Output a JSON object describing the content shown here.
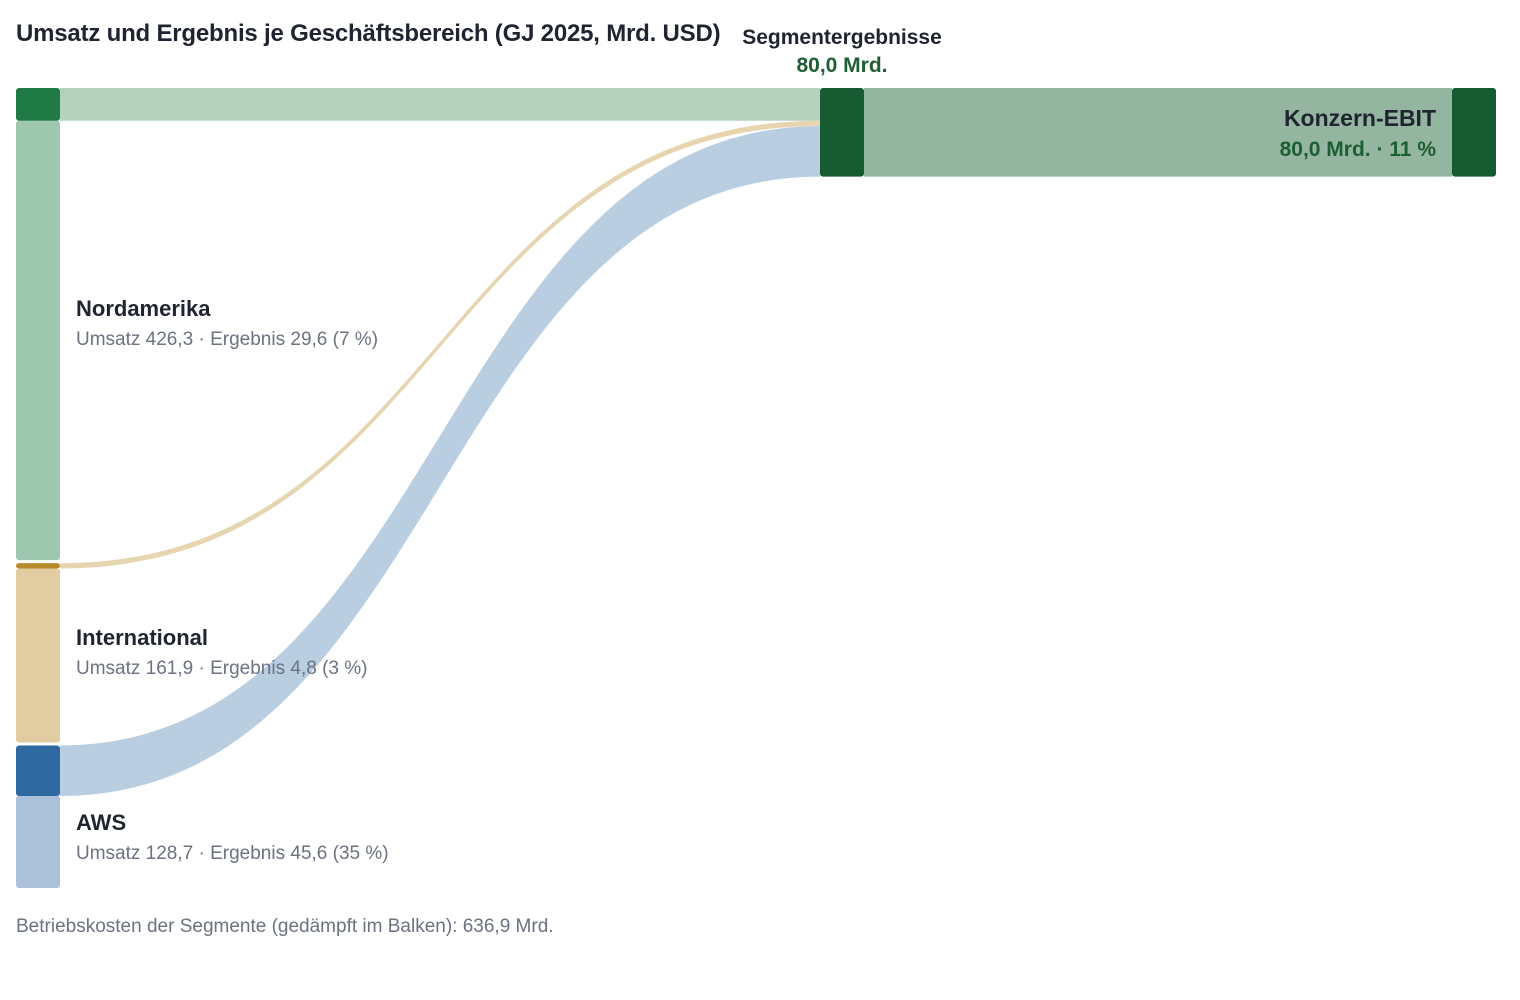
{
  "chart_data": {
    "type": "sankey",
    "title": "Umsatz und Ergebnis je Geschäftsbereich (GJ 2025, Mrd. USD)",
    "segments": [
      {
        "name": "Nordamerika",
        "revenue": 426.3,
        "profit": 29.6,
        "margin_pct": 7,
        "subtitle": "Umsatz 426,3 · Ergebnis 29,6 (7 %)",
        "color_profit": "#1f7a45",
        "color_cost": "#9fc8b0",
        "color_flow": "#b0d1bc"
      },
      {
        "name": "International",
        "revenue": 161.9,
        "profit": 4.8,
        "margin_pct": 3,
        "subtitle": "Umsatz 161,9 · Ergebnis 4,8 (3 %)",
        "color_profit": "#b8892a",
        "color_cost": "#e2cda2",
        "color_flow": "#e6d3ac"
      },
      {
        "name": "AWS",
        "revenue": 128.7,
        "profit": 45.6,
        "margin_pct": 35,
        "subtitle": "Umsatz 128,7 · Ergebnis 45,6 (35 %)",
        "color_profit": "#2e6aa0",
        "color_cost": "#abc1da",
        "color_flow": "#b5cbdf"
      }
    ],
    "middle": {
      "title": "Segmentergebnisse",
      "value": 80.0,
      "value_label": "80,0 Mrd.",
      "color": "#175b33"
    },
    "target": {
      "name": "Konzern-EBIT",
      "value": 80.0,
      "value_label": "80,0 Mrd. · 11 %",
      "margin_pct": 11,
      "color_bar": "#94b5a0",
      "color_cap": "#175b33"
    },
    "footnote": "Betriebskosten der Segmente (gedämpft im Balken): 636,9 Mrd.",
    "operating_costs_total": 636.9
  }
}
